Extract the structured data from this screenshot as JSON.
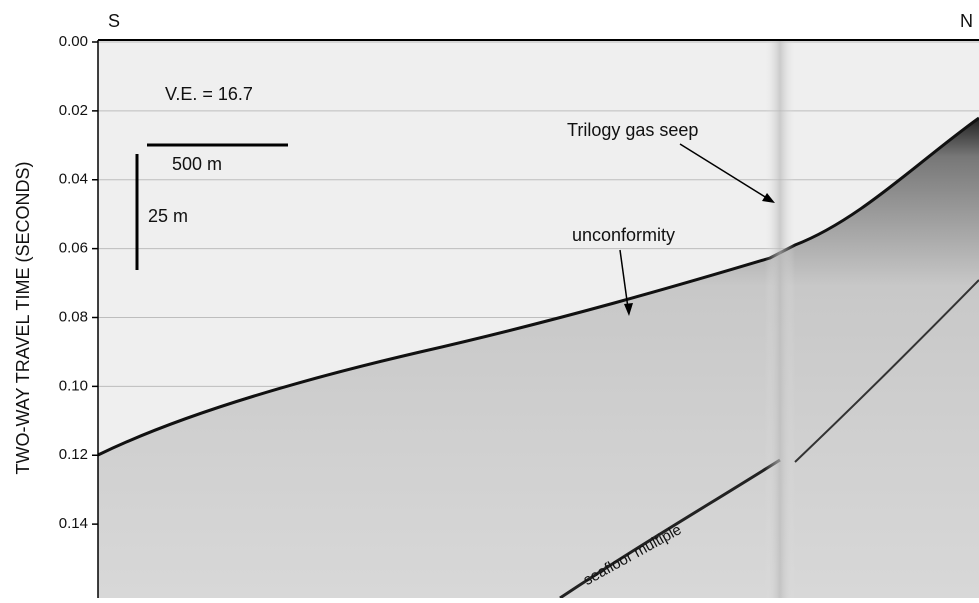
{
  "chart_data": {
    "type": "profile",
    "ylabel": "TWO-WAY TRAVEL TIME (SECONDS)",
    "left_label": "S",
    "right_label": "N",
    "ylim": [
      0,
      0.16
    ],
    "yticks": [
      {
        "value": 0,
        "label": "0.00"
      },
      {
        "value": 0.02,
        "label": "0.02"
      },
      {
        "value": 0.04,
        "label": "0.04"
      },
      {
        "value": 0.06,
        "label": "0.06"
      },
      {
        "value": 0.08,
        "label": "0.08"
      },
      {
        "value": 0.1,
        "label": "0.10"
      },
      {
        "value": 0.12,
        "label": "0.12"
      },
      {
        "value": 0.14,
        "label": "0.14"
      }
    ],
    "grid": true,
    "annotations": {
      "ve": "V.E. = 16.7",
      "h_scale": "500 m",
      "v_scale": "25 m",
      "seep": "Trilogy gas seep",
      "unconformity": "unconformity",
      "multiple": "seafloor multiple"
    }
  }
}
